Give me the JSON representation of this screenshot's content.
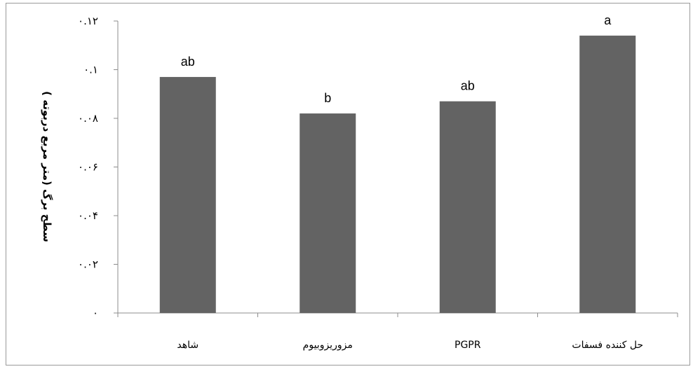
{
  "chart_data": {
    "type": "bar",
    "title": "",
    "xlabel": "",
    "ylabel": "سطح برگ (متر مربع دربوته )",
    "categories": [
      "شاهد",
      "مزوریزوبیوم",
      "PGPR",
      "حل کننده فسفات"
    ],
    "values": [
      0.097,
      0.082,
      0.087,
      0.114
    ],
    "data_labels": [
      "ab",
      "b",
      "ab",
      "a"
    ],
    "ylim": [
      0,
      0.12
    ],
    "yticks": [
      0,
      0.02,
      0.04,
      0.06,
      0.08,
      0.1,
      0.12
    ],
    "ytick_labels": [
      "۰",
      "۰.۰۲",
      "۰.۰۴",
      "۰.۰۶",
      "۰.۰۸",
      "۰.۱",
      "۰.۱۲"
    ],
    "bar_color": "#636363",
    "grid": false,
    "legend": "none"
  }
}
